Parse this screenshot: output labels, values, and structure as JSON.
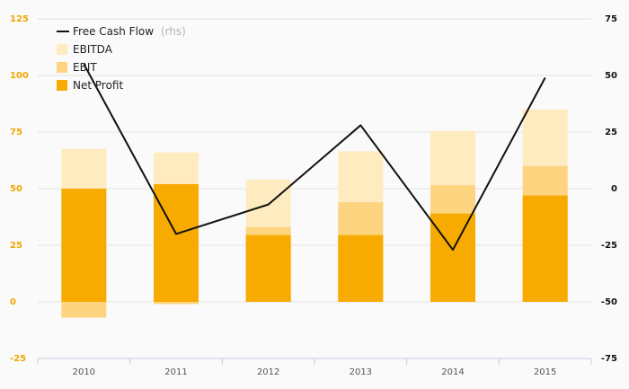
{
  "chart_data": {
    "type": "bar",
    "categories": [
      "2010",
      "2011",
      "2012",
      "2013",
      "2014",
      "2015"
    ],
    "series": [
      {
        "name": "EBITDA",
        "kind": "bar",
        "axis": "left",
        "color": "#ffebc0",
        "values": [
          67.5,
          66,
          54,
          66.5,
          75.5,
          85
        ]
      },
      {
        "name": "EBIT",
        "kind": "bar",
        "axis": "left",
        "color": "#fdd480",
        "values": [
          -7,
          -1,
          33,
          44,
          51.5,
          60
        ]
      },
      {
        "name": "Net Profit",
        "kind": "bar",
        "axis": "left",
        "color": "#f7ab00",
        "values": [
          50,
          52,
          29.5,
          29.5,
          39,
          47
        ]
      },
      {
        "name": "Free Cash Flow",
        "kind": "line",
        "axis": "right",
        "color": "#111111",
        "values": [
          55,
          -20,
          -7,
          28,
          -27,
          49
        ]
      }
    ],
    "legend_note": "(rhs)",
    "left_axis": {
      "min": -25,
      "max": 125,
      "ticks": [
        -25,
        0,
        25,
        50,
        75,
        100,
        125
      ]
    },
    "right_axis": {
      "min": -75,
      "max": 75,
      "ticks": [
        -75,
        -50,
        -25,
        0,
        25,
        50,
        75
      ]
    },
    "title": "",
    "xlabel": "",
    "ylabel": "",
    "grid": true,
    "legend_position": "top-left"
  }
}
